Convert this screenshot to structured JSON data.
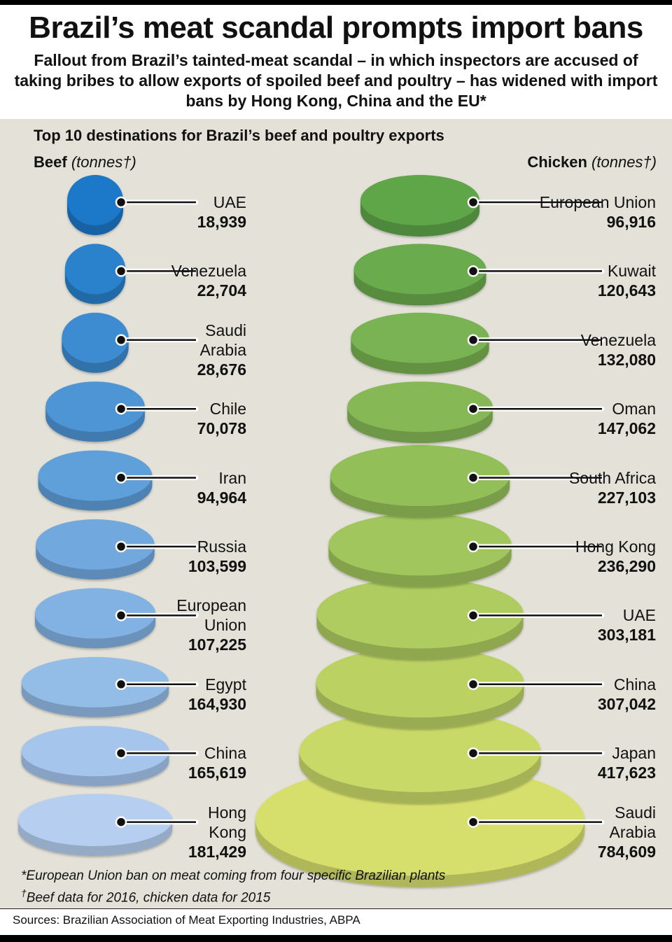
{
  "title": "Brazil’s meat scandal prompts import bans",
  "subtitle": "Fallout from Brazil’s tainted-meat scandal – in which inspectors are accused of taking bribes to allow exports of spoiled beef and poultry – has widened with import bans by Hong Kong, China and the EU*",
  "section_heading": "Top 10 destinations for Brazil’s beef and poultry exports",
  "footnotes": {
    "eu_ban": "*European Union ban on meat coming from four specific Brazilian plants",
    "dagger_mark": "†",
    "data_years": "Beef data for 2016, chicken data for 2015"
  },
  "sources": "Sources: Brazilian Association of Meat Exporting Industries, ABPA",
  "colors": {
    "beef_top": "#1a78c8",
    "beef_bottom": "#b6cff0",
    "chicken_top": "#5ea64a",
    "chicken_bottom": "#d6df6c"
  },
  "chart_data": [
    {
      "type": "stacked-discs",
      "name": "Beef",
      "unit": "(tonnes†)",
      "categories": [
        "UAE",
        "Venezuela",
        "Saudi Arabia",
        "Chile",
        "Iran",
        "Russia",
        "European Union",
        "Egypt",
        "China",
        "Hong Kong"
      ],
      "label_lines": [
        [
          "UAE"
        ],
        [
          "Venezuela"
        ],
        [
          "Saudi",
          "Arabia"
        ],
        [
          "Chile"
        ],
        [
          "Iran"
        ],
        [
          "Russia"
        ],
        [
          "European",
          "Union"
        ],
        [
          "Egypt"
        ],
        [
          "China"
        ],
        [
          "Hong",
          "Kong"
        ]
      ],
      "values": [
        18939,
        22704,
        28676,
        70078,
        94964,
        103599,
        107225,
        164930,
        165619,
        181429
      ],
      "value_labels": [
        "18,939",
        "22,704",
        "28,676",
        "70,078",
        "94,964",
        "103,599",
        "107,225",
        "164,930",
        "165,619",
        "181,429"
      ]
    },
    {
      "type": "stacked-discs",
      "name": "Chicken",
      "unit": "(tonnes†)",
      "categories": [
        "European Union",
        "Kuwait",
        "Venezuela",
        "Oman",
        "South Africa",
        "Hong Kong",
        "UAE",
        "China",
        "Japan",
        "Saudi Arabia"
      ],
      "label_lines": [
        [
          "European Union"
        ],
        [
          "Kuwait"
        ],
        [
          "Venezuela"
        ],
        [
          "Oman"
        ],
        [
          "South Africa"
        ],
        [
          "Hong Kong"
        ],
        [
          "UAE"
        ],
        [
          "China"
        ],
        [
          "Japan"
        ],
        [
          "Saudi",
          "Arabia"
        ]
      ],
      "values": [
        96916,
        120643,
        132080,
        147062,
        227103,
        236290,
        303181,
        307042,
        417623,
        784609
      ],
      "value_labels": [
        "96,916",
        "120,643",
        "132,080",
        "147,062",
        "227,103",
        "236,290",
        "303,181",
        "307,042",
        "417,623",
        "784,609"
      ]
    }
  ]
}
